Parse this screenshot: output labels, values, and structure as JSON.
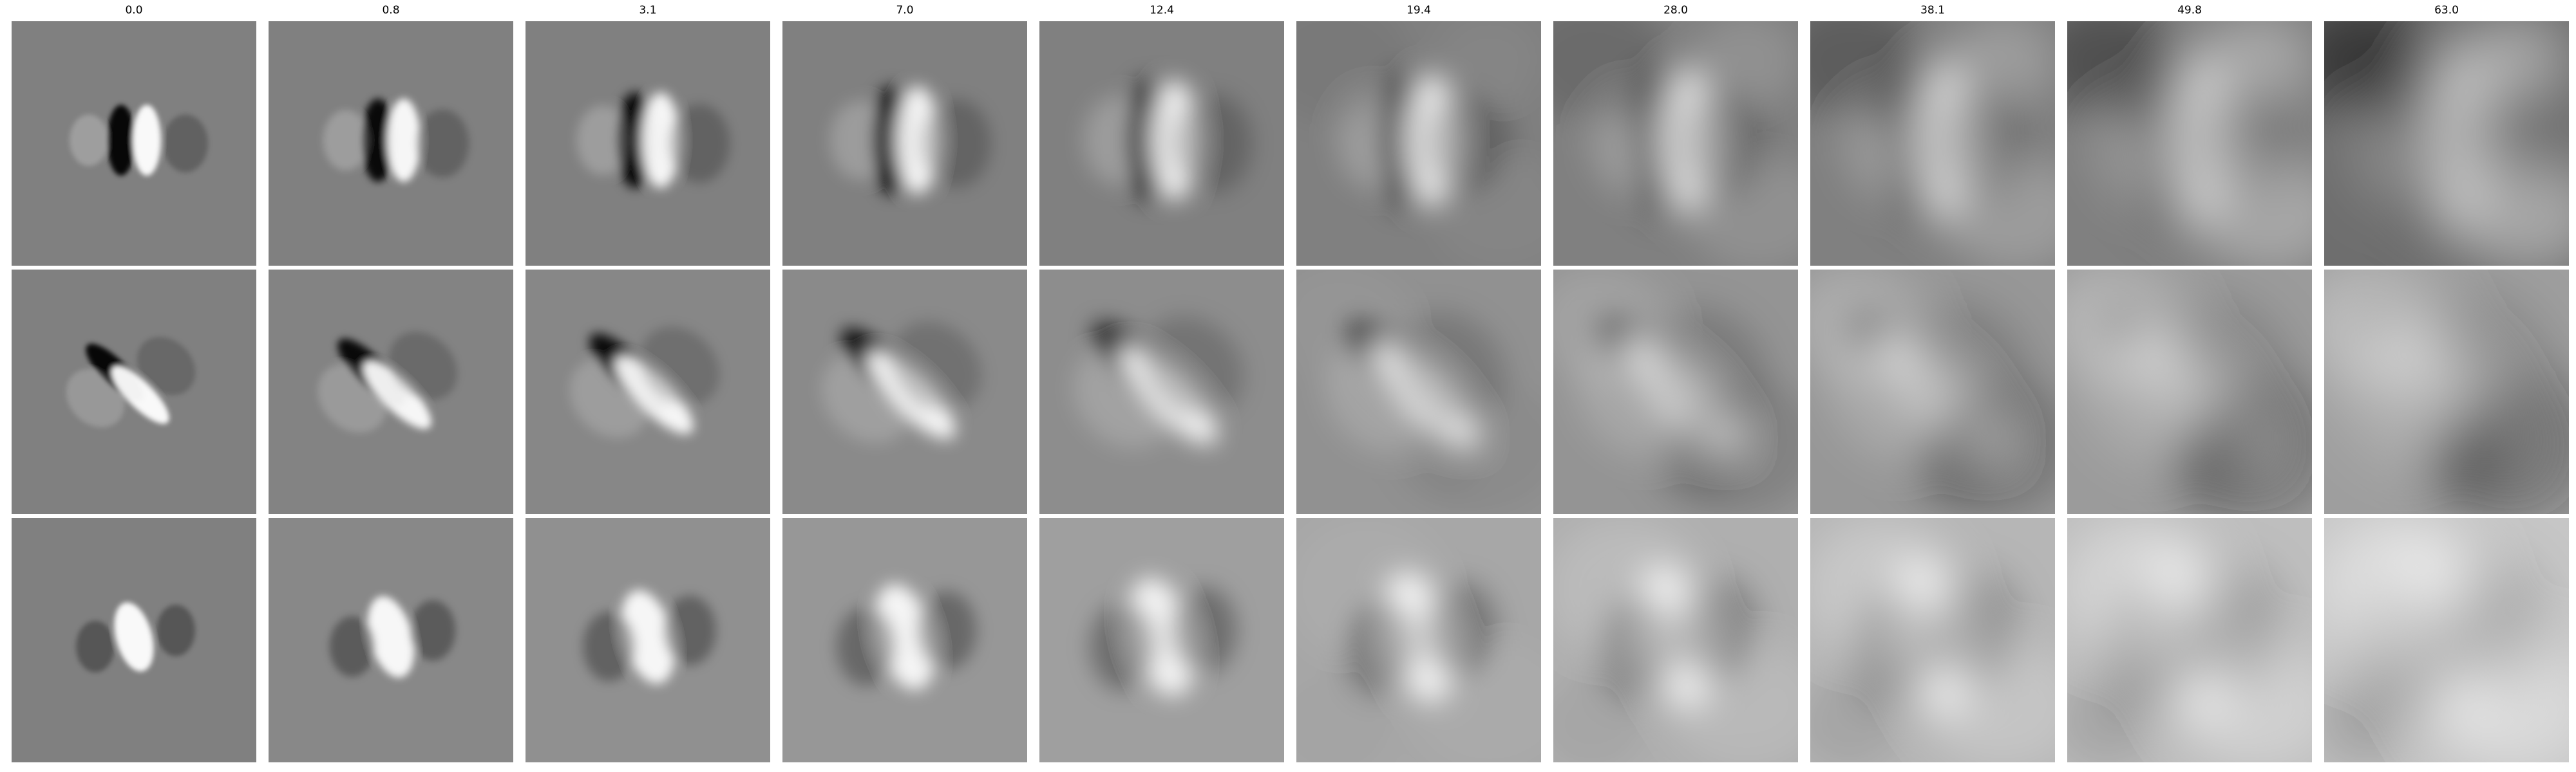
{
  "figure": {
    "columns": [
      "0.0",
      "0.8",
      "3.1",
      "7.0",
      "12.4",
      "19.4",
      "28.0",
      "38.1",
      "49.8",
      "63.0"
    ],
    "rows": 3,
    "colors": {
      "background": "#ffffff",
      "neutral": "#808080",
      "dark": "#000000",
      "light": "#ffffff"
    },
    "content": "grayscale filter images, blur increases left to right"
  }
}
